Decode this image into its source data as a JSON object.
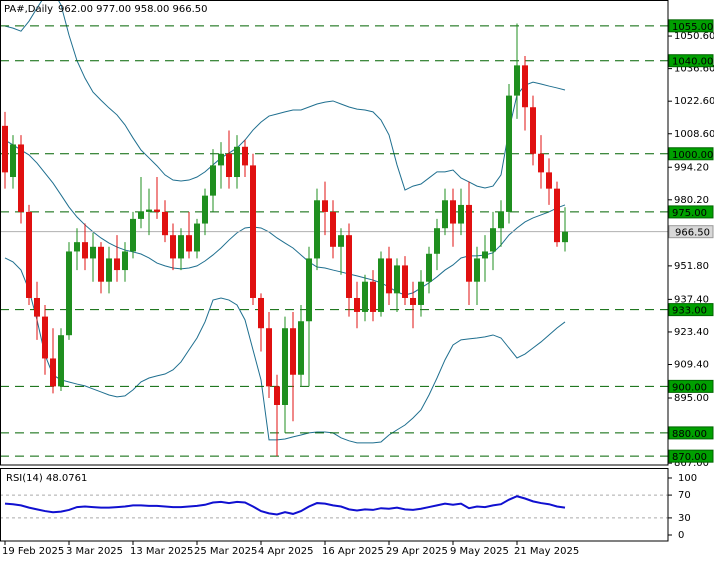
{
  "chart_data": [
    {
      "type": "candlestick",
      "title": "PA#,Daily",
      "header_prices": "962.00 977.00 958.00 966.50",
      "categories": [
        "19 Feb 2025",
        null,
        null,
        null,
        null,
        null,
        null,
        null,
        "3 Mar 2025",
        null,
        null,
        null,
        null,
        null,
        null,
        null,
        "13 Mar 2025",
        null,
        null,
        null,
        null,
        null,
        null,
        null,
        "25 Mar 2025",
        null,
        null,
        null,
        null,
        null,
        null,
        null,
        "4 Apr 2025",
        null,
        null,
        null,
        null,
        null,
        null,
        null,
        "16 Apr 2025",
        null,
        null,
        null,
        null,
        null,
        null,
        null,
        "29 Apr 2025",
        null,
        null,
        null,
        null,
        null,
        null,
        null,
        "9 May 2025",
        null,
        null,
        null,
        null,
        null,
        null,
        null,
        "21 May 2025",
        null,
        null,
        null,
        null,
        null,
        null
      ],
      "open": [
        1012,
        990,
        1004,
        975,
        938,
        930,
        912,
        900,
        922,
        958,
        962,
        955,
        960,
        945,
        955,
        950,
        958,
        972,
        975,
        976,
        975,
        965,
        955,
        965,
        958,
        970,
        982,
        995,
        1000,
        990,
        1003,
        995,
        938,
        925,
        900,
        892,
        925,
        905,
        928,
        955,
        980,
        975,
        960,
        965,
        938,
        932,
        945,
        932,
        955,
        940,
        952,
        938,
        935,
        945,
        957,
        968,
        980,
        970,
        978,
        945,
        955,
        958,
        968,
        975,
        1025,
        1038,
        1020,
        1000,
        992,
        985,
        962
      ],
      "high": [
        1018,
        1008,
        1008,
        978,
        945,
        935,
        925,
        925,
        962,
        968,
        970,
        966,
        962,
        960,
        965,
        962,
        975,
        990,
        985,
        990,
        980,
        970,
        968,
        975,
        972,
        985,
        1002,
        1005,
        1010,
        1008,
        1006,
        1000,
        940,
        932,
        905,
        930,
        932,
        935,
        960,
        985,
        988,
        980,
        968,
        970,
        945,
        948,
        950,
        958,
        960,
        955,
        956,
        945,
        950,
        960,
        972,
        985,
        985,
        985,
        988,
        960,
        965,
        975,
        980,
        1030,
        1056,
        1042,
        1025,
        1008,
        998,
        988,
        977
      ],
      "low": [
        985,
        985,
        970,
        935,
        920,
        905,
        897,
        898,
        920,
        950,
        950,
        945,
        940,
        940,
        945,
        945,
        955,
        968,
        965,
        972,
        962,
        950,
        950,
        955,
        955,
        965,
        975,
        985,
        985,
        985,
        990,
        935,
        915,
        895,
        870,
        880,
        885,
        900,
        900,
        950,
        965,
        955,
        948,
        930,
        925,
        928,
        928,
        930,
        935,
        932,
        935,
        925,
        930,
        940,
        950,
        965,
        960,
        965,
        935,
        935,
        945,
        950,
        960,
        970,
        1015,
        1010,
        995,
        985,
        978,
        960,
        958
      ],
      "close": [
        992,
        1004,
        975,
        938,
        930,
        912,
        900,
        922,
        958,
        962,
        955,
        960,
        945,
        955,
        950,
        958,
        972,
        975,
        976,
        975,
        965,
        955,
        965,
        958,
        970,
        982,
        995,
        1000,
        990,
        1003,
        995,
        938,
        925,
        900,
        892,
        925,
        905,
        928,
        955,
        980,
        975,
        960,
        965,
        938,
        932,
        945,
        932,
        955,
        940,
        952,
        938,
        935,
        945,
        957,
        968,
        980,
        970,
        978,
        945,
        955,
        958,
        968,
        975,
        1025,
        1038,
        1020,
        1000,
        992,
        985,
        962,
        966.5
      ],
      "up_color": "#1f8f1f",
      "down_color": "#e01010",
      "bands": {
        "color": "#1f6f8f",
        "upper": [
          1054.9,
          1054,
          1052.7,
          1057,
          1062.6,
          1068,
          1070,
          1064,
          1051,
          1040,
          1032.5,
          1026.5,
          1023,
          1019.7,
          1016.7,
          1012.4,
          1006.8,
          1001.6,
          998.2,
          994.8,
          990.9,
          988.7,
          988.3,
          988.7,
          990,
          992.2,
          995.2,
          998.2,
          1000.3,
          1002.5,
          1005.9,
          1010.2,
          1013.6,
          1016.2,
          1017.1,
          1018,
          1018.8,
          1018.8,
          1020.1,
          1021.4,
          1022.2,
          1022.7,
          1021.4,
          1020.1,
          1019.2,
          1018.8,
          1018,
          1014.5,
          1008.1,
          995.2,
          984.4,
          986.1,
          987,
          989.6,
          992.2,
          992.2,
          993,
          989.6,
          987.9,
          986.1,
          985.3,
          986.1,
          990.9,
          1010.2,
          1025.3,
          1029.5,
          1030.8,
          1030,
          1029.1,
          1028.3,
          1027.4
        ],
        "middle": [
          1005.9,
          1003.8,
          1001.6,
          999.5,
          996,
          991.7,
          987.4,
          982.3,
          977.1,
          972.8,
          969.4,
          966.4,
          963.8,
          961.6,
          959.9,
          958.6,
          957.8,
          956.9,
          955.2,
          953,
          951.8,
          950.9,
          950.5,
          950.9,
          951.8,
          953.9,
          956.5,
          959.5,
          962.9,
          966,
          968.1,
          968.5,
          968.1,
          966.4,
          963.8,
          961.6,
          959.5,
          956.5,
          953.5,
          951.3,
          950.9,
          950,
          949.2,
          948.3,
          947.5,
          946.6,
          945.7,
          944.5,
          942.7,
          940.6,
          939.3,
          940.2,
          942.3,
          944.5,
          947.1,
          950,
          952.2,
          955.2,
          956.1,
          956.1,
          956.5,
          957.4,
          960.8,
          965.1,
          968.1,
          970.7,
          972.4,
          973.7,
          975,
          976.7,
          978
        ],
        "lower": [
          955.2,
          953.5,
          950,
          941.4,
          928.6,
          913.5,
          904.9,
          902.8,
          901.9,
          901,
          900.2,
          898.9,
          897.6,
          896.3,
          895.5,
          895.9,
          898.5,
          901.9,
          903.6,
          904.5,
          905.3,
          907.1,
          910.5,
          915.7,
          920.8,
          927.7,
          937.1,
          938,
          937.1,
          935,
          928.6,
          915.7,
          902.8,
          877,
          877,
          877.4,
          878.3,
          879.1,
          880,
          880.4,
          880.4,
          880,
          877.9,
          876.6,
          875.7,
          875.7,
          875.7,
          876.1,
          879.1,
          881.3,
          883.4,
          886.4,
          889.9,
          896.3,
          903.6,
          911.4,
          917.8,
          920,
          920.4,
          920.8,
          921.3,
          922.1,
          920.8,
          916.5,
          912.2,
          913.9,
          916.5,
          919.1,
          922.1,
          925.1,
          927.7
        ]
      },
      "levels": [
        {
          "value": 1055,
          "label": "1055.00"
        },
        {
          "value": 1040,
          "label": "1040.00"
        },
        {
          "value": 1000,
          "label": "1000.00"
        },
        {
          "value": 975,
          "label": "975.00"
        },
        {
          "value": 933,
          "label": "933.00"
        },
        {
          "value": 900,
          "label": "900.00"
        },
        {
          "value": 880,
          "label": "880.00"
        },
        {
          "value": 870,
          "label": "870.00"
        }
      ],
      "level_color": "#00a000",
      "last_price": {
        "value": 966.5,
        "label": "966.50"
      },
      "ylim": [
        866.2,
        1066.1
      ],
      "yticks": [
        {
          "value": 1050.6,
          "label": "1050.60"
        },
        {
          "value": 1036.6,
          "label": "1036.60"
        },
        {
          "value": 1022.6,
          "label": "1022.60"
        },
        {
          "value": 1008.6,
          "label": "1008.60"
        },
        {
          "value": 994.2,
          "label": "994.20"
        },
        {
          "value": 980.2,
          "label": "980.20"
        },
        {
          "value": 951.8,
          "label": "951.80"
        },
        {
          "value": 937.4,
          "label": "937.40"
        },
        {
          "value": 923.4,
          "label": "923.40"
        },
        {
          "value": 909.4,
          "label": "909.40"
        },
        {
          "value": 895,
          "label": "895.00"
        },
        {
          "value": 867,
          "label": "867.00"
        }
      ]
    },
    {
      "type": "line",
      "title": "RSI(14) 48.0761",
      "color": "#1010d0",
      "values": [
        55,
        54,
        52,
        48,
        45,
        42,
        40,
        41,
        44,
        49,
        50,
        49,
        48,
        48,
        49,
        50,
        52,
        52,
        51,
        51,
        50,
        49,
        49,
        50,
        51,
        53,
        57,
        58,
        56,
        58,
        57,
        50,
        42,
        38,
        36,
        40,
        37,
        42,
        50,
        56,
        55,
        52,
        50,
        45,
        43,
        45,
        44,
        47,
        46,
        48,
        45,
        44,
        46,
        49,
        52,
        55,
        53,
        55,
        47,
        50,
        49,
        52,
        54,
        62,
        68,
        64,
        59,
        56,
        54,
        50,
        48.0761
      ],
      "ylim": [
        -10.5,
        117.5
      ],
      "yticks": [
        0,
        30,
        70,
        100
      ],
      "levels": [
        30,
        70
      ]
    }
  ]
}
